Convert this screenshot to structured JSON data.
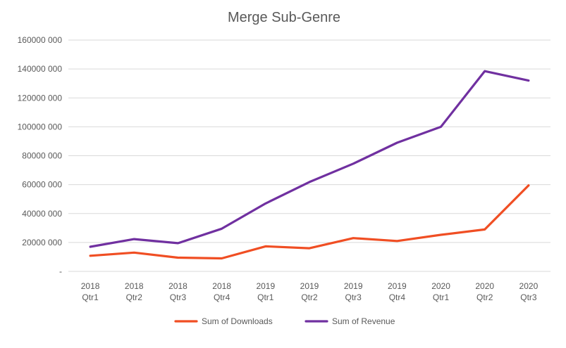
{
  "chart_data": {
    "type": "line",
    "title": "Merge Sub-Genre",
    "xlabel": "",
    "ylabel": "",
    "ylim": [
      0,
      160000
    ],
    "yticks": [
      0,
      20000,
      40000,
      60000,
      80000,
      100000,
      120000,
      140000,
      160000
    ],
    "ytick_labels": [
      "-",
      "20000 000",
      "40000 000",
      "60000 000",
      "80000 000",
      "100000 000",
      "120000 000",
      "140000 000",
      "160000 000"
    ],
    "categories": [
      [
        "2018",
        "Qtr1"
      ],
      [
        "2018",
        "Qtr2"
      ],
      [
        "2018",
        "Qtr3"
      ],
      [
        "2018",
        "Qtr4"
      ],
      [
        "2019",
        "Qtr1"
      ],
      [
        "2019",
        "Qtr2"
      ],
      [
        "2019",
        "Qtr3"
      ],
      [
        "2019",
        "Qtr4"
      ],
      [
        "2020",
        "Qtr1"
      ],
      [
        "2020",
        "Qtr2"
      ],
      [
        "2020",
        "Qtr3"
      ]
    ],
    "series": [
      {
        "name": "Sum of Downloads",
        "color": "#f04e23",
        "values": [
          10800,
          13000,
          9500,
          9000,
          17300,
          16000,
          23000,
          21000,
          25300,
          29000,
          59500
        ]
      },
      {
        "name": "Sum of Revenue",
        "color": "#7030a0",
        "values": [
          17000,
          22300,
          19500,
          29500,
          47000,
          61800,
          74500,
          89000,
          100000,
          138500,
          132000
        ]
      }
    ],
    "grid": true,
    "legend_position": "bottom"
  }
}
